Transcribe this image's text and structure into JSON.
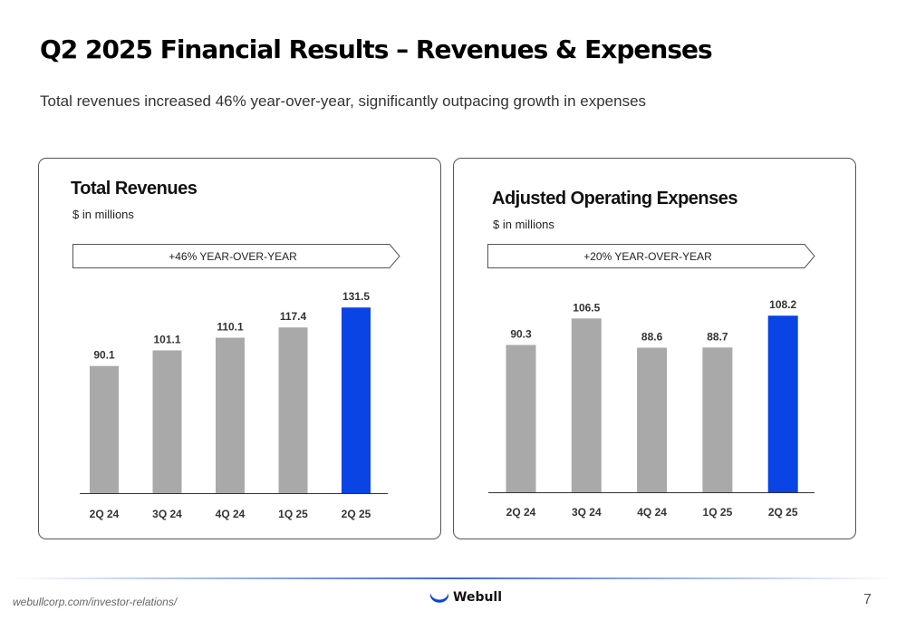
{
  "slide": {
    "title": "Q2 2025 Financial Results – Revenues & Expenses",
    "subtitle": "Total revenues increased 46% year-over-year, significantly outpacing growth in expenses"
  },
  "colors": {
    "bar_default": "#a9a9a9",
    "bar_highlight": "#0a44e4",
    "axis": "#333333",
    "label": "#333333"
  },
  "chart_data": [
    {
      "type": "bar",
      "title": "Total Revenues",
      "unit": "$ in millions",
      "badge": "+46% YEAR-OVER-YEAR",
      "categories": [
        "2Q 24",
        "3Q 24",
        "4Q 24",
        "1Q 25",
        "2Q 25"
      ],
      "values": [
        90.1,
        101.1,
        110.1,
        117.4,
        131.5
      ],
      "value_labels": [
        "90.1",
        "101.1",
        "110.1",
        "117.4",
        "131.5"
      ],
      "highlight": "2Q 25",
      "ylim": [
        0,
        150
      ],
      "grid": false,
      "legend": "none"
    },
    {
      "type": "bar",
      "title": "Adjusted Operating Expenses",
      "unit": "$ in millions",
      "badge": "+20% YEAR-OVER-YEAR",
      "categories": [
        "2Q 24",
        "3Q 24",
        "4Q 24",
        "1Q 25",
        "2Q 25"
      ],
      "values": [
        90.3,
        106.5,
        88.6,
        88.7,
        108.2
      ],
      "value_labels": [
        "90.3",
        "106.5",
        "88.6",
        "88.7",
        "108.2"
      ],
      "highlight": "2Q 25",
      "ylim": [
        0,
        150
      ],
      "grid": false,
      "legend": "none"
    }
  ],
  "footer": {
    "url": "webullcorp.com/investor-relations/",
    "brand": "Webull",
    "logo_icon": "webull-wave-icon",
    "page": "7"
  }
}
